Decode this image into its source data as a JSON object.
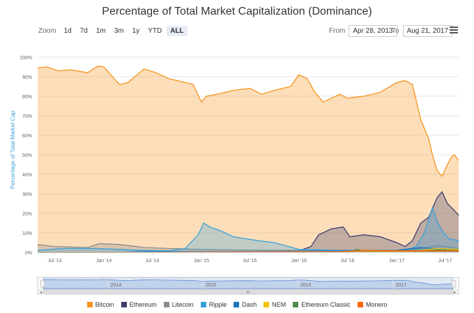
{
  "title": "Percentage of Total Market Capitalization (Dominance)",
  "toolbar": {
    "zoom_label": "Zoom",
    "zoom_buttons": [
      "1d",
      "7d",
      "1m",
      "3m",
      "1y",
      "YTD",
      "ALL"
    ],
    "active_zoom": "ALL",
    "from_label": "From",
    "from_value": "Apr 28, 2013",
    "to_label": "To",
    "to_value": "Aug 21, 2017"
  },
  "navigator": {
    "year_labels": [
      "2014",
      "2015",
      "2016",
      "2017"
    ],
    "handle_glyph": "III"
  },
  "chart_data": {
    "type": "area",
    "ylabel": "Percentage of Total Market Cap",
    "xlabel": "",
    "ylim": [
      0,
      100
    ],
    "y_ticks": [
      "0%",
      "10%",
      "20%",
      "30%",
      "40%",
      "50%",
      "60%",
      "70%",
      "80%",
      "90%",
      "100%"
    ],
    "x_ticks": [
      "Jul '13",
      "Jan '14",
      "Jul '14",
      "Jan '15",
      "Jul '15",
      "Jan '16",
      "Jul '16",
      "Jan '17",
      "Jul '17"
    ],
    "x_tick_dates": [
      "2013-07-01",
      "2014-01-01",
      "2014-07-01",
      "2015-01-01",
      "2015-07-01",
      "2016-01-01",
      "2016-07-01",
      "2017-01-01",
      "2017-07-01"
    ],
    "x_range": [
      "2013-04-28",
      "2017-08-21"
    ],
    "grid": true,
    "legend_position": "bottom",
    "series": [
      {
        "name": "Bitcoin",
        "color": "#f7931a",
        "dates": [
          "2013-04-28",
          "2013-06-01",
          "2013-07-15",
          "2013-09-01",
          "2013-11-01",
          "2013-12-10",
          "2014-01-01",
          "2014-02-15",
          "2014-03-01",
          "2014-04-01",
          "2014-06-01",
          "2014-07-15",
          "2014-09-01",
          "2014-11-01",
          "2014-12-01",
          "2015-01-01",
          "2015-01-20",
          "2015-03-01",
          "2015-05-01",
          "2015-07-01",
          "2015-08-15",
          "2015-10-01",
          "2015-12-01",
          "2016-01-01",
          "2016-02-01",
          "2016-03-01",
          "2016-04-01",
          "2016-06-01",
          "2016-07-01",
          "2016-09-01",
          "2016-11-01",
          "2017-01-01",
          "2017-02-01",
          "2017-03-01",
          "2017-04-01",
          "2017-05-01",
          "2017-05-15",
          "2017-06-01",
          "2017-06-20",
          "2017-07-10",
          "2017-07-25",
          "2017-08-05",
          "2017-08-21"
        ],
        "values": [
          94.5,
          95,
          93,
          93.5,
          92,
          95.5,
          95,
          88,
          86,
          87,
          94,
          92,
          89,
          87,
          86,
          77,
          80,
          81,
          83,
          84,
          81,
          83,
          85,
          91,
          89,
          82,
          77,
          81,
          79,
          80,
          82,
          87,
          88,
          86,
          68,
          58,
          50,
          42,
          39,
          45,
          49,
          50,
          47
        ]
      },
      {
        "name": "Ethereum",
        "color": "#3c3c6e",
        "dates": [
          "2013-04-28",
          "2015-08-07",
          "2016-01-01",
          "2016-02-15",
          "2016-03-15",
          "2016-05-01",
          "2016-06-15",
          "2016-07-10",
          "2016-09-01",
          "2016-11-01",
          "2017-01-01",
          "2017-02-01",
          "2017-03-01",
          "2017-04-01",
          "2017-05-01",
          "2017-06-01",
          "2017-06-20",
          "2017-07-10",
          "2017-08-01",
          "2017-08-21"
        ],
        "values": [
          0,
          0.2,
          0.8,
          3,
          9,
          12,
          13,
          8,
          9,
          8,
          5,
          3,
          6,
          15,
          18,
          28,
          31,
          25,
          22,
          19
        ]
      },
      {
        "name": "Litecoin",
        "color": "#8c8c8c",
        "dates": [
          "2013-04-28",
          "2013-07-01",
          "2013-11-01",
          "2013-12-15",
          "2014-03-01",
          "2014-06-01",
          "2014-09-01",
          "2015-01-01",
          "2015-06-01",
          "2016-01-01",
          "2016-06-01",
          "2017-01-01",
          "2017-04-01",
          "2017-06-01",
          "2017-08-21"
        ],
        "values": [
          4,
          3,
          2.5,
          4.5,
          4,
          2.5,
          2,
          1.5,
          1.2,
          1,
          0.8,
          1,
          2,
          3.5,
          2
        ]
      },
      {
        "name": "Ripple",
        "color": "#37a2da",
        "dates": [
          "2013-04-28",
          "2013-08-01",
          "2013-12-01",
          "2014-03-01",
          "2014-06-01",
          "2014-09-01",
          "2014-11-01",
          "2014-12-20",
          "2015-01-10",
          "2015-02-01",
          "2015-03-15",
          "2015-05-01",
          "2015-06-15",
          "2015-08-01",
          "2015-10-01",
          "2016-01-01",
          "2016-06-01",
          "2016-12-01",
          "2017-02-01",
          "2017-03-15",
          "2017-04-15",
          "2017-05-15",
          "2017-06-01",
          "2017-06-20",
          "2017-07-15",
          "2017-08-21"
        ],
        "values": [
          1,
          2,
          2,
          1.5,
          1,
          0.8,
          2,
          9,
          15,
          13,
          11,
          8,
          7,
          6,
          5,
          1.5,
          1,
          1,
          1,
          3,
          10,
          23,
          16,
          11,
          7,
          6
        ]
      },
      {
        "name": "Dash",
        "color": "#1c75bc",
        "dates": [
          "2013-04-28",
          "2014-02-01",
          "2014-06-01",
          "2015-01-01",
          "2016-01-01",
          "2016-06-01",
          "2017-01-01",
          "2017-03-01",
          "2017-04-01",
          "2017-06-01",
          "2017-08-21"
        ],
        "values": [
          0,
          0,
          0.5,
          0.4,
          0.5,
          0.8,
          1,
          2,
          2.5,
          1.8,
          1.5
        ]
      },
      {
        "name": "NEM",
        "color": "#f4c20d",
        "dates": [
          "2013-04-28",
          "2015-04-01",
          "2016-06-01",
          "2017-03-01",
          "2017-05-01",
          "2017-06-01",
          "2017-08-21"
        ],
        "values": [
          0,
          0,
          0.2,
          0.5,
          1.5,
          2,
          1.5
        ]
      },
      {
        "name": "Ethereum Classic",
        "color": "#4c8c4c",
        "dates": [
          "2013-04-28",
          "2016-07-24",
          "2016-08-01",
          "2016-09-01",
          "2017-01-01",
          "2017-04-01",
          "2017-06-01",
          "2017-08-21"
        ],
        "values": [
          0,
          0,
          1.5,
          0.8,
          0.8,
          0.8,
          1.2,
          1
        ]
      },
      {
        "name": "Monero",
        "color": "#ff6600",
        "dates": [
          "2013-04-28",
          "2014-05-01",
          "2015-01-01",
          "2016-06-01",
          "2016-09-01",
          "2017-01-01",
          "2017-06-01",
          "2017-08-21"
        ],
        "values": [
          0,
          0,
          0.2,
          0.4,
          1,
          0.8,
          0.8,
          0.9
        ]
      }
    ]
  }
}
